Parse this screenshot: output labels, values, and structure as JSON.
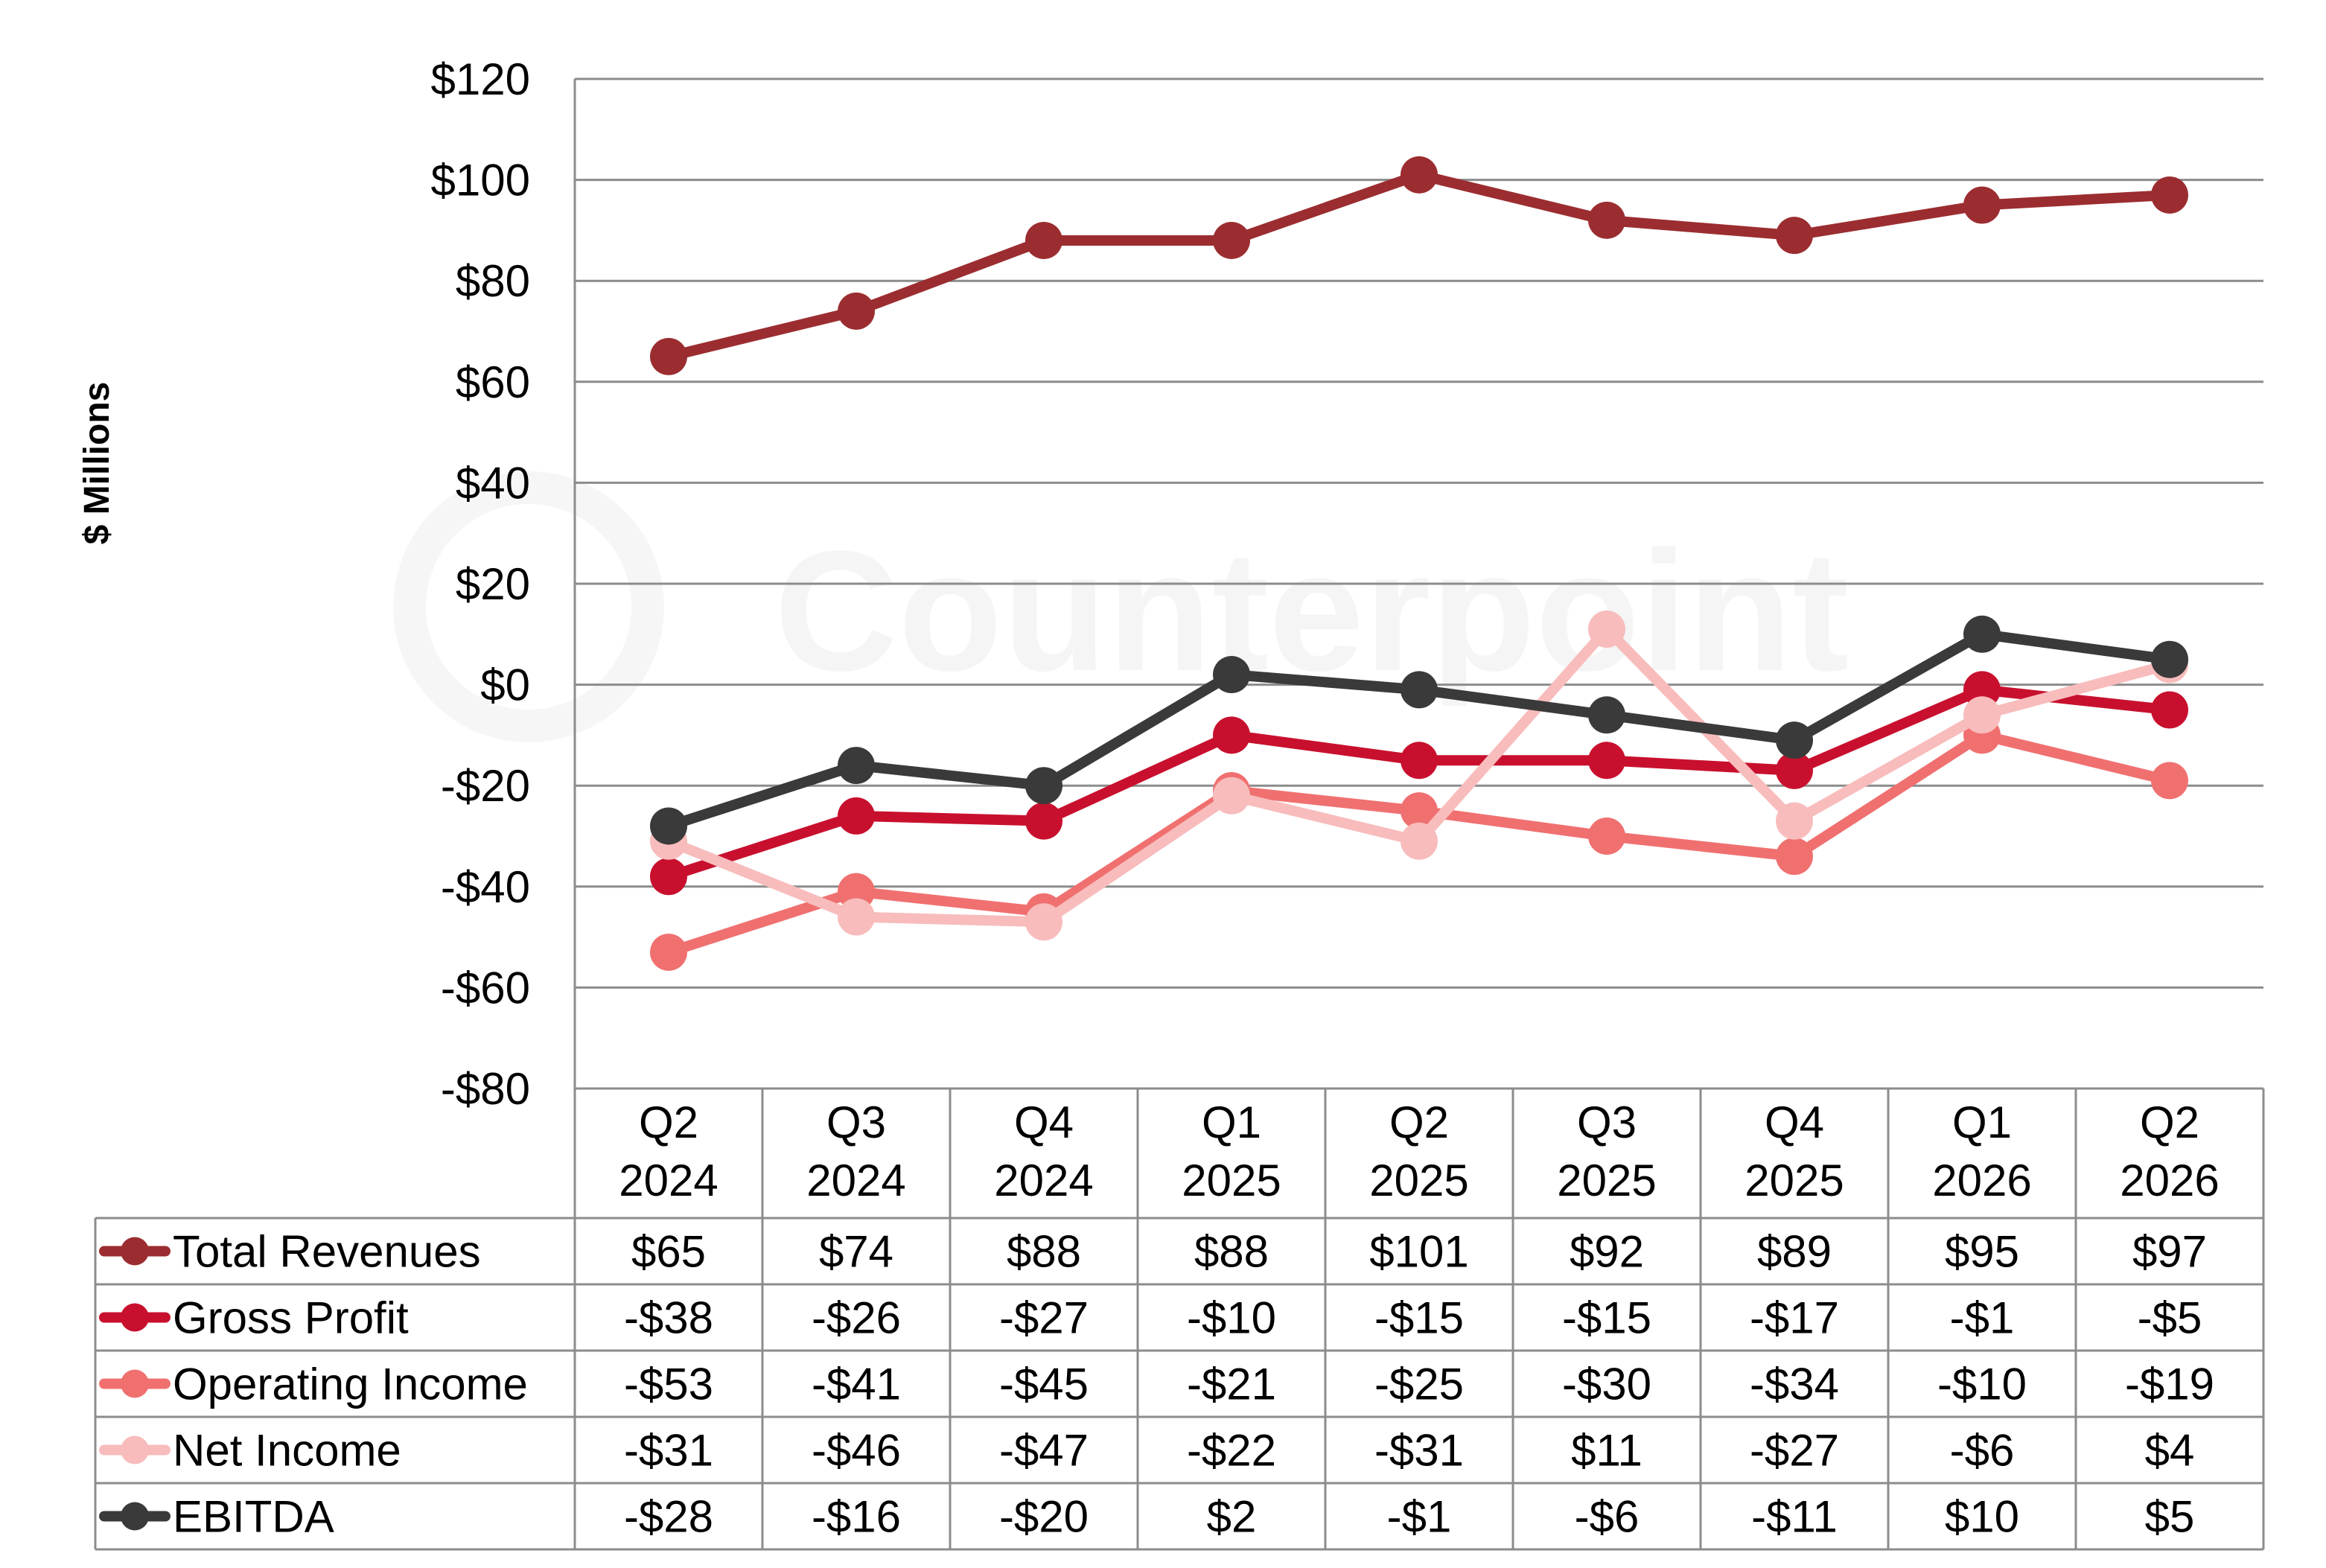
{
  "chart_data": {
    "type": "line",
    "ylabel": "$ Millions",
    "watermark": "Counterpoint",
    "ylim": [
      -80,
      120
    ],
    "yticks": [
      120,
      100,
      80,
      60,
      40,
      20,
      0,
      -20,
      -40,
      -60,
      -80
    ],
    "ytick_labels": [
      "$120",
      "$100",
      "$80",
      "$60",
      "$40",
      "$20",
      "$0",
      "-$20",
      "-$40",
      "-$60",
      "-$80"
    ],
    "categories": [
      [
        "Q2",
        "2024"
      ],
      [
        "Q3",
        "2024"
      ],
      [
        "Q4",
        "2024"
      ],
      [
        "Q1",
        "2025"
      ],
      [
        "Q2",
        "2025"
      ],
      [
        "Q3",
        "2025"
      ],
      [
        "Q4",
        "2025"
      ],
      [
        "Q1",
        "2026"
      ],
      [
        "Q2",
        "2026"
      ]
    ],
    "grid": true,
    "legend": "data table below chart",
    "series": [
      {
        "name": "Total Revenues",
        "color": "#9b2d30",
        "values": [
          65,
          74,
          88,
          88,
          101,
          92,
          89,
          95,
          97
        ],
        "labels": [
          "$65",
          "$74",
          "$88",
          "$88",
          "$101",
          "$92",
          "$89",
          "$95",
          "$97"
        ]
      },
      {
        "name": "Gross Profit",
        "color": "#c8102e",
        "values": [
          -38,
          -26,
          -27,
          -10,
          -15,
          -15,
          -17,
          -1,
          -5
        ],
        "labels": [
          "-$38",
          "-$26",
          "-$27",
          "-$10",
          "-$15",
          "-$15",
          "-$17",
          "-$1",
          "-$5"
        ]
      },
      {
        "name": "Operating Income",
        "color": "#f07070",
        "values": [
          -53,
          -41,
          -45,
          -21,
          -25,
          -30,
          -34,
          -10,
          -19
        ],
        "labels": [
          "-$53",
          "-$41",
          "-$45",
          "-$21",
          "-$25",
          "-$30",
          "-$34",
          "-$10",
          "-$19"
        ]
      },
      {
        "name": "Net Income",
        "color": "#f8bcbc",
        "values": [
          -31,
          -46,
          -47,
          -22,
          -31,
          11,
          -27,
          -6,
          4
        ],
        "labels": [
          "-$31",
          "-$46",
          "-$47",
          "-$22",
          "-$31",
          "$11",
          "-$27",
          "-$6",
          "$4"
        ]
      },
      {
        "name": "EBITDA",
        "color": "#3a3a3a",
        "values": [
          -28,
          -16,
          -20,
          2,
          -1,
          -6,
          -11,
          10,
          5
        ],
        "labels": [
          "-$28",
          "-$16",
          "-$20",
          "$2",
          "-$1",
          "-$6",
          "-$11",
          "$10",
          "$5"
        ]
      }
    ]
  }
}
